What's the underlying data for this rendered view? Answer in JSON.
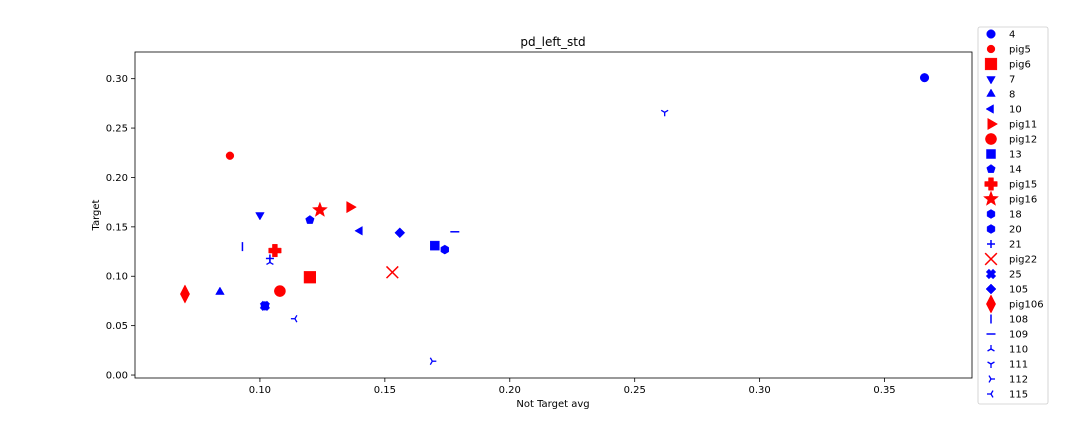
{
  "chart_data": {
    "type": "scatter",
    "title": "pd_left_std",
    "xlabel": "Not Target avg",
    "ylabel": "Target",
    "xlim": [
      0.05,
      0.385
    ],
    "ylim": [
      -0.003,
      0.327
    ],
    "xticks": [
      "0.10",
      "0.15",
      "0.20",
      "0.25",
      "0.30",
      "0.35"
    ],
    "yticks": [
      "0.00",
      "0.05",
      "0.10",
      "0.15",
      "0.20",
      "0.25",
      "0.30"
    ],
    "grid": false,
    "legend_position": "outside-right",
    "series": [
      {
        "name": "4",
        "color": "#0000ff",
        "marker": "circle",
        "x": 0.366,
        "y": 0.301
      },
      {
        "name": "pig5",
        "color": "#ff0000",
        "marker": "small-circle",
        "x": 0.088,
        "y": 0.222
      },
      {
        "name": "pig6",
        "color": "#ff0000",
        "marker": "square",
        "x": 0.12,
        "y": 0.099
      },
      {
        "name": "7",
        "color": "#0000ff",
        "marker": "triangle-down",
        "x": 0.1,
        "y": 0.162
      },
      {
        "name": "8",
        "color": "#0000ff",
        "marker": "triangle-up",
        "x": 0.084,
        "y": 0.084
      },
      {
        "name": "10",
        "color": "#0000ff",
        "marker": "triangle-left",
        "x": 0.14,
        "y": 0.146
      },
      {
        "name": "pig11",
        "color": "#ff0000",
        "marker": "triangle-right",
        "x": 0.136,
        "y": 0.17
      },
      {
        "name": "pig12",
        "color": "#ff0000",
        "marker": "circle",
        "x": 0.108,
        "y": 0.085
      },
      {
        "name": "13",
        "color": "#0000ff",
        "marker": "square",
        "x": 0.17,
        "y": 0.131
      },
      {
        "name": "14",
        "color": "#0000ff",
        "marker": "pentagon",
        "x": 0.12,
        "y": 0.157
      },
      {
        "name": "pig15",
        "color": "#ff0000",
        "marker": "plus-filled",
        "x": 0.106,
        "y": 0.126
      },
      {
        "name": "pig16",
        "color": "#ff0000",
        "marker": "star",
        "x": 0.124,
        "y": 0.167
      },
      {
        "name": "18",
        "color": "#0000ff",
        "marker": "hexagon",
        "x": 0.174,
        "y": 0.127
      },
      {
        "name": "20",
        "color": "#0000ff",
        "marker": "hexagon",
        "x": 0.102,
        "y": 0.07
      },
      {
        "name": "21",
        "color": "#0000ff",
        "marker": "plus",
        "x": 0.104,
        "y": 0.118
      },
      {
        "name": "pig22",
        "color": "#ff0000",
        "marker": "x",
        "x": 0.153,
        "y": 0.104
      },
      {
        "name": "25",
        "color": "#0000ff",
        "marker": "x-filled",
        "x": 0.102,
        "y": 0.07
      },
      {
        "name": "105",
        "color": "#0000ff",
        "marker": "diamond",
        "x": 0.156,
        "y": 0.144
      },
      {
        "name": "pig106",
        "color": "#ff0000",
        "marker": "thin-diamond",
        "x": 0.07,
        "y": 0.082
      },
      {
        "name": "108",
        "color": "#0000ff",
        "marker": "vline",
        "x": 0.093,
        "y": 0.13
      },
      {
        "name": "109",
        "color": "#0000ff",
        "marker": "hline",
        "x": 0.178,
        "y": 0.145
      },
      {
        "name": "110",
        "color": "#0000ff",
        "marker": "tri-down",
        "x": 0.104,
        "y": 0.114
      },
      {
        "name": "111",
        "color": "#0000ff",
        "marker": "tri-up",
        "x": 0.262,
        "y": 0.266
      },
      {
        "name": "112",
        "color": "#0000ff",
        "marker": "tri-left",
        "x": 0.169,
        "y": 0.014
      },
      {
        "name": "115",
        "color": "#0000ff",
        "marker": "tri-right",
        "x": 0.114,
        "y": 0.057
      }
    ]
  }
}
